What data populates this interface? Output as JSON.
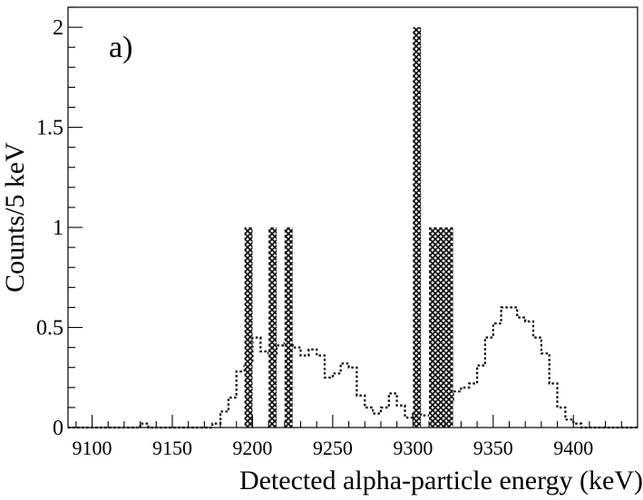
{
  "chart_data": {
    "type": "bar",
    "panel_label": "a)",
    "xlabel": "Detected alpha-particle energy (keV)",
    "ylabel": "Counts/5 keV",
    "xlim": [
      9085,
      9440
    ],
    "ylim": [
      0,
      2.1
    ],
    "bin_width": 5,
    "x_ticks": [
      "9100",
      "9150",
      "9200",
      "9250",
      "9300",
      "9350",
      "9400"
    ],
    "y_ticks": [
      "0",
      "0.5",
      "1",
      "1.5",
      "2"
    ],
    "grid": false,
    "legend": "none",
    "series": [
      {
        "style": "hatched-bars",
        "bins": [
          {
            "x0": 9195,
            "x1": 9200,
            "y": 1
          },
          {
            "x0": 9210,
            "x1": 9215,
            "y": 1
          },
          {
            "x0": 9220,
            "x1": 9225,
            "y": 1
          },
          {
            "x0": 9300,
            "x1": 9305,
            "y": 2
          },
          {
            "x0": 9310,
            "x1": 9315,
            "y": 1
          },
          {
            "x0": 9315,
            "x1": 9320,
            "y": 1
          },
          {
            "x0": 9320,
            "x1": 9325,
            "y": 1
          }
        ]
      },
      {
        "style": "dotted-step",
        "x_start": 9085,
        "values": [
          0,
          0,
          0,
          0,
          0,
          0,
          0,
          0,
          0,
          0.02,
          0,
          0,
          0,
          0,
          0,
          0,
          0,
          0,
          0.02,
          0.08,
          0.15,
          0.28,
          0.32,
          0.45,
          0.38,
          0.37,
          0.41,
          0.42,
          0.4,
          0.36,
          0.39,
          0.36,
          0.25,
          0.27,
          0.32,
          0.3,
          0.16,
          0.1,
          0.07,
          0.1,
          0.17,
          0.11,
          0.05,
          0.08,
          0.06,
          0.07,
          0.1,
          0.14,
          0.18,
          0.2,
          0.22,
          0.31,
          0.45,
          0.52,
          0.6,
          0.6,
          0.55,
          0.53,
          0.45,
          0.37,
          0.22,
          0.1,
          0.04,
          0.02,
          0,
          0,
          0,
          0,
          0,
          0,
          0
        ]
      }
    ]
  }
}
